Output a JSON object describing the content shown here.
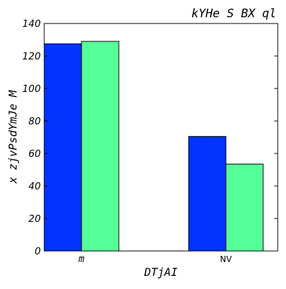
{
  "chart_data": {
    "type": "bar",
    "title": "kYHe S BX ql",
    "xlabel": "DTjAI",
    "ylabel": "x zjvPsdYmJe M",
    "categories": [
      "m",
      "NV"
    ],
    "series": [
      {
        "values": [
          127.5,
          70.5
        ],
        "color": "#0033ff"
      },
      {
        "values": [
          129,
          53.5
        ],
        "color": "#55ff99"
      }
    ],
    "ylim": [
      0,
      140
    ],
    "yticks": [
      0,
      20,
      40,
      60,
      80,
      100,
      120,
      140
    ],
    "grid": false,
    "legend": "none"
  }
}
